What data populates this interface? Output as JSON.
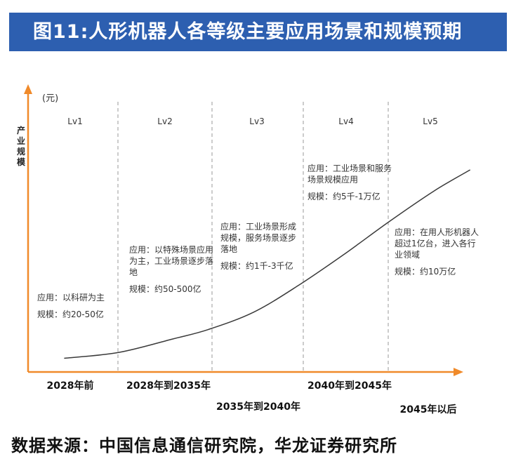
{
  "title": "图11:人形机器人各等级主要应用场景和规模预期",
  "source": "数据来源：中国信息通信研究院，华龙证券研究所",
  "colors": {
    "banner": "#2d5fb0",
    "axis": "#f08a2a",
    "curve": "#3a3a3a",
    "divider": "#999999"
  },
  "chart_data": {
    "type": "line",
    "ylabel_unit": "(元)",
    "ylabel": "产业规模",
    "grid": false,
    "x_ticks": [
      "2028年前",
      "2028年到2035年",
      "2035年到2040年",
      "2040年到2045年",
      "2045年以后"
    ],
    "stages": [
      {
        "level": "Lv1",
        "app": "应用：以科研为主",
        "scale": "规模：约20-50亿"
      },
      {
        "level": "Lv2",
        "app": "应用：以特殊场景应用为主，工业场景逐步落地",
        "scale": "规模：约50-500亿"
      },
      {
        "level": "Lv3",
        "app": "应用：工业场景形成规模，服务场景逐步落地",
        "scale": "规模：约1千-3千亿"
      },
      {
        "level": "Lv4",
        "app": "应用：工业场景和服务场景规模应用",
        "scale": "规模：约5千-1万亿"
      },
      {
        "level": "Lv5",
        "app": "应用：在用人形机器人超过1亿台，进入各行业领域",
        "scale": "规模：约10万亿"
      }
    ],
    "series": [
      {
        "x": [
          0.4,
          1.0,
          1.6,
          2.0,
          2.5,
          3.0,
          3.5,
          4.0,
          4.5,
          4.9
        ],
        "y": [
          0.02,
          0.05,
          0.12,
          0.17,
          0.26,
          0.4,
          0.56,
          0.73,
          0.89,
          1.0
        ]
      }
    ]
  }
}
